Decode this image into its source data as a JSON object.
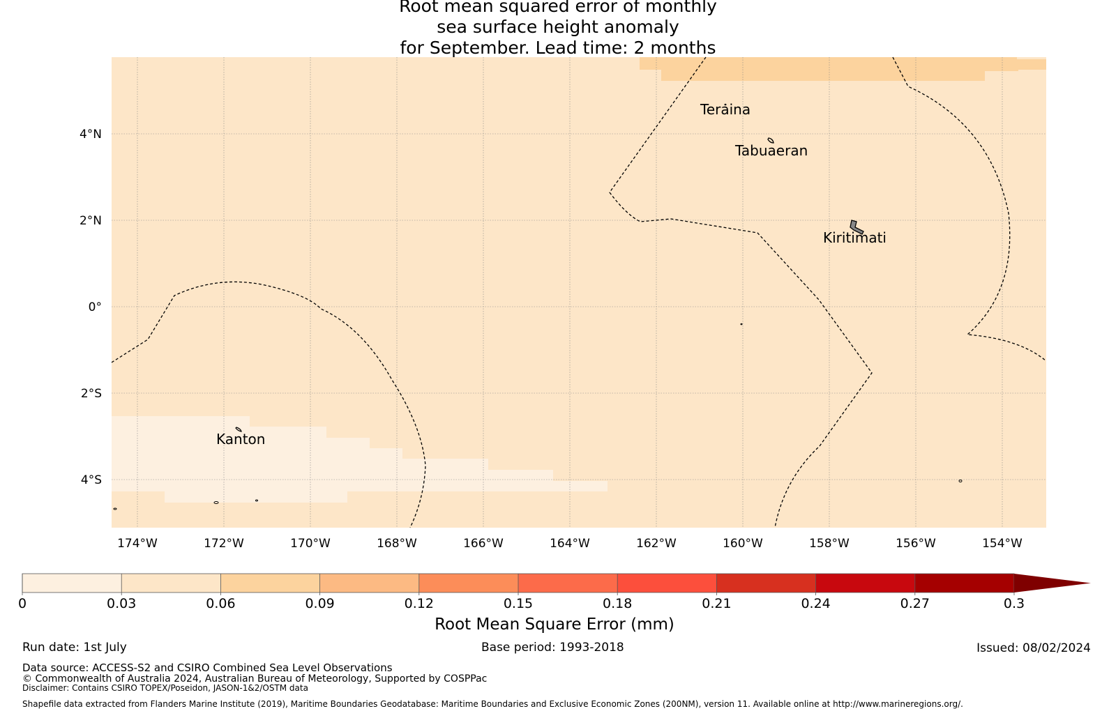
{
  "title": {
    "line1": "Root mean squared error of monthly",
    "line2": "sea surface height anomaly",
    "line3": "for September. Lead time: 2 months"
  },
  "map": {
    "lon_ticks": [
      "174°W",
      "172°W",
      "170°W",
      "168°W",
      "166°W",
      "164°W",
      "162°W",
      "160°W",
      "158°W",
      "156°W",
      "154°W"
    ],
    "lat_ticks": [
      "4°N",
      "2°N",
      "0°",
      "2°S",
      "4°S"
    ],
    "places": [
      "Teraina",
      "Tabuaeran",
      "Kiritimati",
      "Kanton"
    ],
    "colors": {
      "background_band": "#fde6c8",
      "lowest_band": "#fdf0e0",
      "middle_band": "#fcd39e"
    }
  },
  "colorbar": {
    "ticks": [
      "0",
      "0.03",
      "0.06",
      "0.09",
      "0.12",
      "0.15",
      "0.18",
      "0.21",
      "0.24",
      "0.27",
      "0.3"
    ],
    "colors": [
      "#fdf0e0",
      "#fde6c8",
      "#fcd39e",
      "#fcba83",
      "#fc8d59",
      "#fc6b4a",
      "#fc4f3c",
      "#d7301f",
      "#c8080e",
      "#a50000",
      "#7f0000"
    ],
    "label": "Root Mean Square Error (mm)"
  },
  "footer": {
    "run_date": "Run date: 1st July",
    "base_period": "Base period: 1993-2018",
    "issued": "Issued: 08/02/2024",
    "data_source": "Data source: ACCESS-S2 and CSIRO Combined Sea Level Observations",
    "copyright": "© Commonwealth of Australia 2024, Australian Bureau of Meteorology, Supported by COSPPac",
    "disclaimer": "Disclaimer: Contains CSIRO TOPEX/Poseidon, JASON-1&2/OSTM data",
    "shapefile": "Shapefile data extracted from Flanders Marine Institute (2019), Maritime Boundaries Geodatabase: Maritime Boundaries and Exclusive Economic Zones (200NM), version 11. Available online at http://www.marineregions.org/."
  }
}
